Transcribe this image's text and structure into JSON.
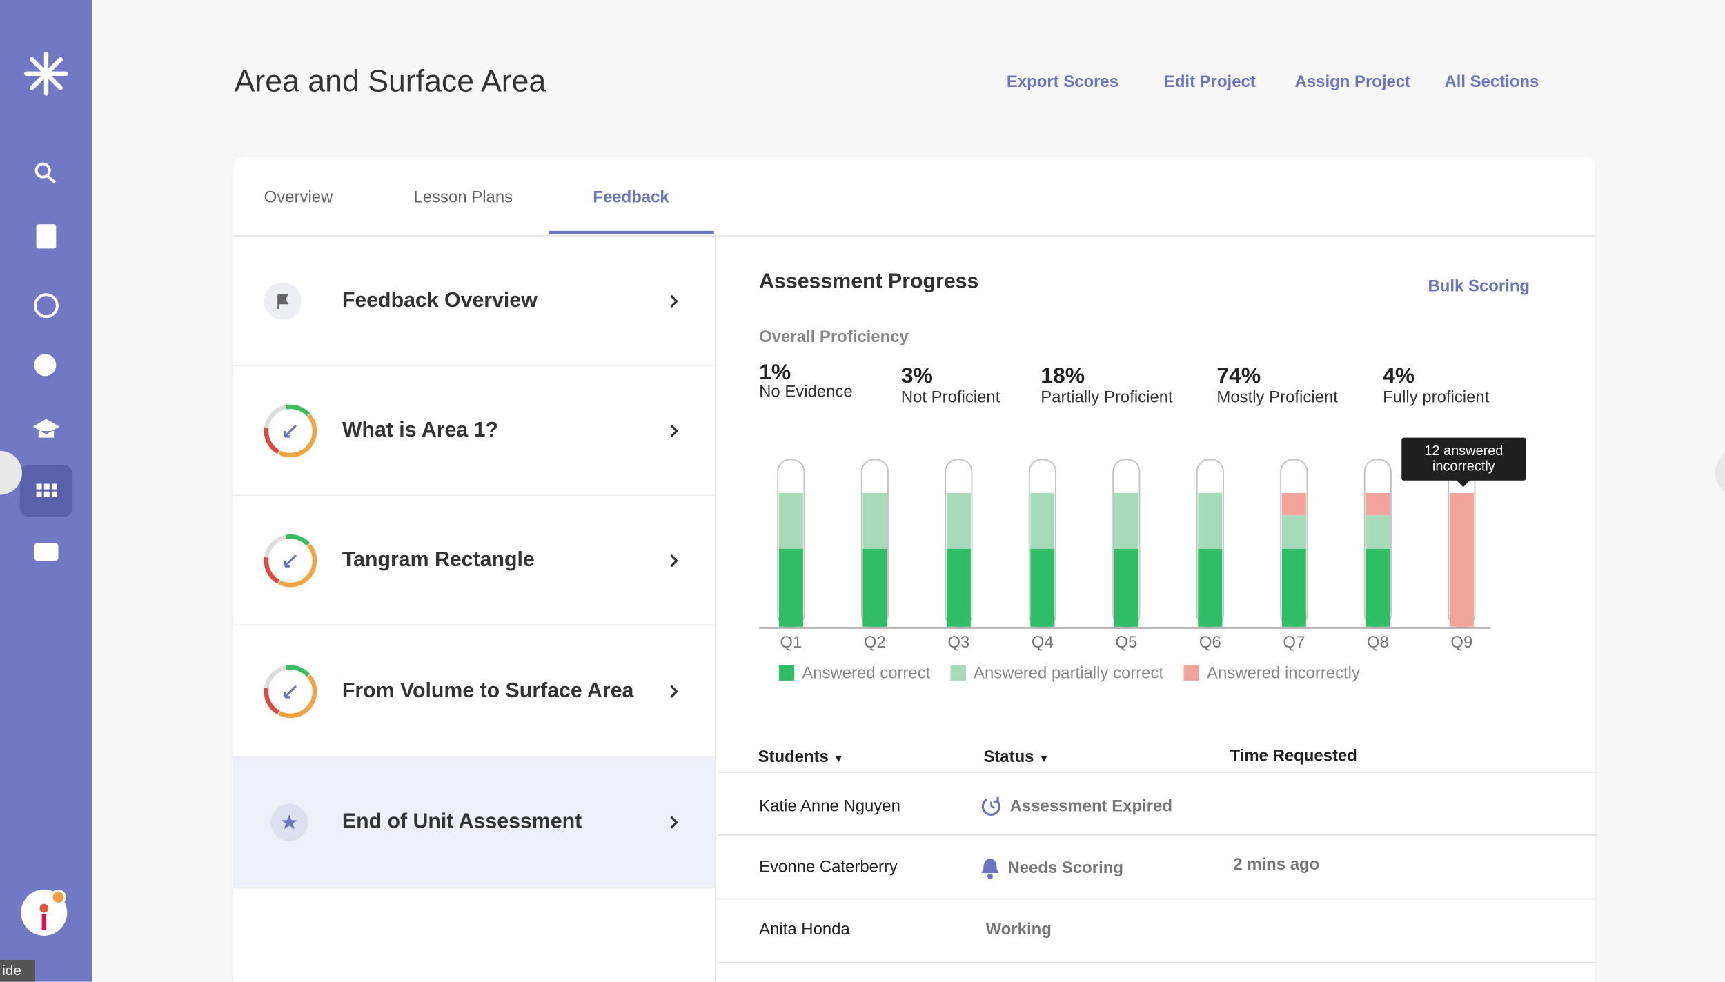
{
  "sidebar": {
    "tab_text": "ide"
  },
  "header": {
    "title": "Area and Surface Area",
    "actions": [
      "Export Scores",
      "Edit Project",
      "Assign Project",
      "All Sections"
    ]
  },
  "tabs": [
    "Overview",
    "Lesson Plans",
    "Feedback"
  ],
  "lessons": [
    "Feedback Overview",
    "What is Area 1?",
    "Tangram Rectangle",
    "From Volume to Surface Area",
    "End of Unit Assessment"
  ],
  "panel": {
    "title": "Assessment Progress",
    "action": "Bulk Scoring",
    "proficiency_title": "Overall Proficiency",
    "proficiency": [
      {
        "percent": "1%",
        "label": "No Evidence"
      },
      {
        "percent": "3%",
        "label": "Not Proficient"
      },
      {
        "percent": "18%",
        "label": "Partially Proficient"
      },
      {
        "percent": "74%",
        "label": "Mostly Proficient"
      },
      {
        "percent": "4%",
        "label": "Fully proficient"
      }
    ]
  },
  "chart_data": {
    "type": "bar",
    "stacked": true,
    "categories": [
      "Q1",
      "Q2",
      "Q3",
      "Q4",
      "Q5",
      "Q6",
      "Q7",
      "Q8",
      "Q9"
    ],
    "series": [
      {
        "name": "Answered correct",
        "color": "#2fbe65",
        "values": [
          7,
          7,
          7,
          7,
          7,
          7,
          7,
          7,
          0
        ]
      },
      {
        "name": "Answered partially correct",
        "color": "#a6dab8",
        "values": [
          5,
          5,
          5,
          5,
          5,
          5,
          3,
          3,
          0
        ]
      },
      {
        "name": "Answered incorrectly",
        "color": "#f2a49c",
        "values": [
          0,
          0,
          0,
          0,
          0,
          0,
          2,
          2,
          12
        ]
      }
    ],
    "ylim": [
      0,
      15
    ],
    "annotation": "12 answered incorrectly"
  },
  "table": {
    "columns": [
      "Students",
      "Status",
      "Time Requested"
    ],
    "rows": [
      {
        "student": "Katie Anne Nguyen",
        "status": "Assessment Expired"
      },
      {
        "student": "Evonne Caterberry",
        "status": "Needs Scoring",
        "time": "2 mins ago"
      },
      {
        "student": "Anita Honda",
        "status": "Working"
      }
    ]
  }
}
